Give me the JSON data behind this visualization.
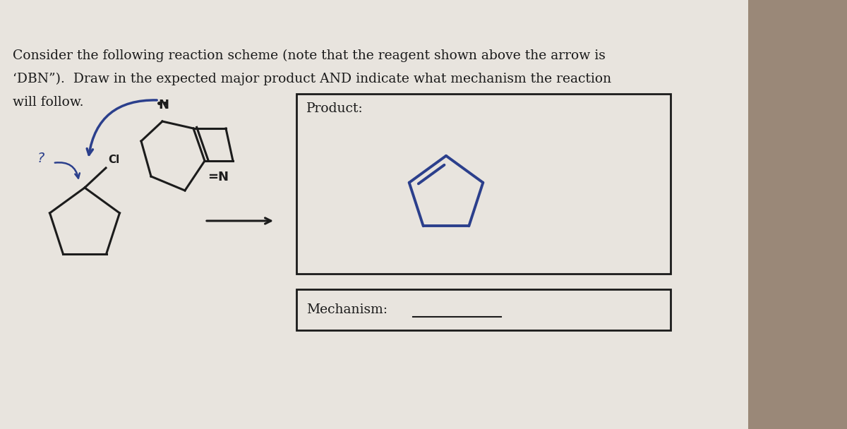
{
  "bg_color": "#b8a898",
  "paper_color": "#e8e4de",
  "text_line1": "Consider the following reaction scheme (note that the reagent shown above the arrow is",
  "text_line2": "‘DBN”).  Draw in the expected major product AND indicate what mechanism the reaction",
  "text_line3": "will follow.",
  "text_fontsize": 13.5,
  "text_color": "#1a1a1a",
  "product_label": "Product:",
  "mechanism_label": "Mechanism:",
  "box_color": "#1a1a1a",
  "molecule_color": "#1c1c1c",
  "blue_color": "#2b3f8c",
  "arrow_color": "#1a1a1a"
}
